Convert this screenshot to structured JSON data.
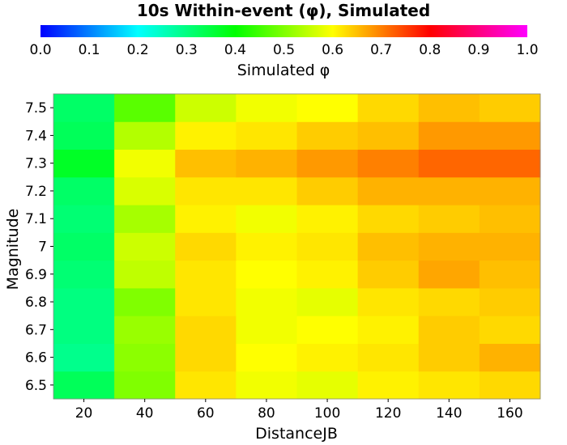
{
  "chart_data": {
    "type": "heatmap",
    "title": "10s Within-event (φ), Simulated",
    "colorbar": {
      "label": "Simulated φ",
      "range": [
        0.0,
        1.0
      ],
      "ticks": [
        "0.0",
        "0.1",
        "0.2",
        "0.3",
        "0.4",
        "0.5",
        "0.6",
        "0.7",
        "0.8",
        "0.9",
        "1.0"
      ]
    },
    "xlabel": "DistanceJB",
    "ylabel": "Magnitude",
    "x_ticks": [
      "20",
      "40",
      "60",
      "80",
      "100",
      "120",
      "140",
      "160"
    ],
    "y_ticks": [
      "6.5",
      "6.6",
      "6.7",
      "6.8",
      "6.9",
      "7",
      "7.1",
      "7.2",
      "7.3",
      "7.4",
      "7.5"
    ],
    "x_centers": [
      20,
      40,
      60,
      80,
      100,
      120,
      140,
      160
    ],
    "y_centers": [
      6.5,
      6.6,
      6.7,
      6.8,
      6.9,
      7.0,
      7.1,
      7.2,
      7.3,
      7.4,
      7.5
    ],
    "xlim": [
      10,
      170
    ],
    "ylim": [
      6.45,
      7.55
    ],
    "values": [
      [
        0.33,
        0.5,
        0.62,
        0.59,
        0.58,
        0.61,
        0.62,
        0.63
      ],
      [
        0.29,
        0.51,
        0.63,
        0.6,
        0.61,
        0.62,
        0.64,
        0.66
      ],
      [
        0.3,
        0.52,
        0.63,
        0.59,
        0.6,
        0.61,
        0.64,
        0.63
      ],
      [
        0.3,
        0.5,
        0.62,
        0.59,
        0.58,
        0.62,
        0.63,
        0.64
      ],
      [
        0.31,
        0.55,
        0.62,
        0.6,
        0.61,
        0.64,
        0.67,
        0.65
      ],
      [
        0.32,
        0.56,
        0.63,
        0.61,
        0.62,
        0.65,
        0.66,
        0.66
      ],
      [
        0.31,
        0.53,
        0.61,
        0.59,
        0.61,
        0.63,
        0.64,
        0.65
      ],
      [
        0.32,
        0.57,
        0.62,
        0.62,
        0.64,
        0.66,
        0.66,
        0.66
      ],
      [
        0.37,
        0.59,
        0.65,
        0.66,
        0.68,
        0.7,
        0.72,
        0.72
      ],
      [
        0.33,
        0.54,
        0.61,
        0.62,
        0.64,
        0.65,
        0.68,
        0.68
      ],
      [
        0.32,
        0.47,
        0.56,
        0.59,
        0.6,
        0.63,
        0.65,
        0.64
      ]
    ]
  }
}
